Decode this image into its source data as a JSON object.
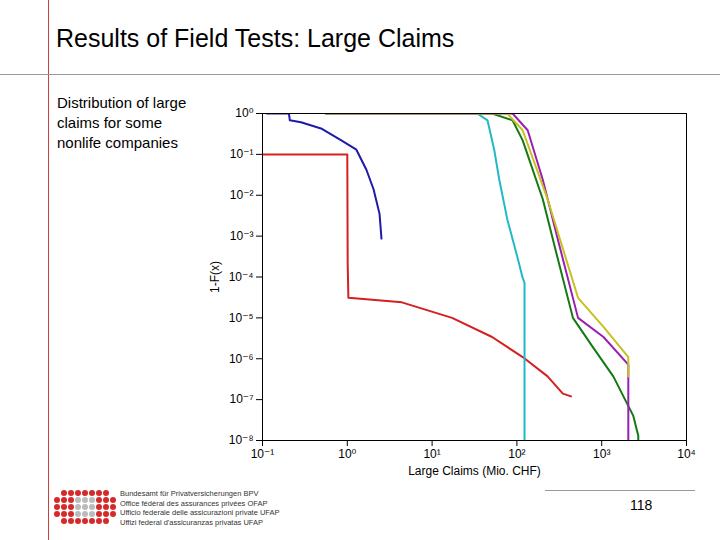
{
  "slide": {
    "title": "Results of Field Tests: Large Claims",
    "caption": "Distribution of large claims for some nonlife companies",
    "footer": [
      "Bundesamt für Privatversicherungen BPV",
      "Office fédéral des assurances privées OFAP",
      "Ufficio federale delle assicurazioni private UFAP",
      "Uffizi federal d'assicuranzas privatas UFAP"
    ],
    "page": "118"
  },
  "chart_data": {
    "type": "line",
    "log": true,
    "grid": false,
    "x_label": "Large Claims (Mio. CHF)",
    "y_label": "1-F(x)",
    "xlim": [
      0.1,
      10000
    ],
    "ylim": [
      1e-08,
      1
    ],
    "xticks": [
      {
        "value": 0.1,
        "label": "10⁻¹"
      },
      {
        "value": 1,
        "label": "10⁰"
      },
      {
        "value": 10,
        "label": "10¹"
      },
      {
        "value": 100,
        "label": "10²"
      },
      {
        "value": 1000,
        "label": "10³"
      },
      {
        "value": 10000,
        "label": "10⁴"
      }
    ],
    "yticks": [
      {
        "value": 1,
        "label": "10⁰"
      },
      {
        "value": 0.1,
        "label": "10⁻¹"
      },
      {
        "value": 0.01,
        "label": "10⁻²"
      },
      {
        "value": 0.001,
        "label": "10⁻³"
      },
      {
        "value": 0.0001,
        "label": "10⁻⁴"
      },
      {
        "value": 1e-05,
        "label": "10⁻⁵"
      },
      {
        "value": 1e-06,
        "label": "10⁻⁶"
      },
      {
        "value": 1e-07,
        "label": "10⁻⁷"
      },
      {
        "value": 1e-08,
        "label": "10⁻⁸"
      }
    ],
    "series": [
      {
        "color": "#1c1ca8",
        "x": [
          0.112,
          0.205,
          0.21,
          0.284,
          0.49,
          0.85,
          1.28,
          1.68,
          2.04,
          2.4,
          2.53
        ],
        "values": [
          1,
          1,
          0.68,
          0.61,
          0.43,
          0.22,
          0.13,
          0.042,
          0.014,
          0.0035,
          0.00087
        ]
      },
      {
        "color": "#d42020",
        "x": [
          0.1,
          1,
          1.01,
          1.03,
          4.4,
          17.2,
          51,
          117,
          230,
          348,
          434
        ],
        "values": [
          0.1,
          0.1,
          0.00022,
          3.1e-05,
          2.4e-05,
          1e-05,
          3.4e-06,
          1.1e-06,
          3.7e-07,
          1.4e-07,
          1.2e-07
        ]
      },
      {
        "color": "#137a13",
        "x": [
          0.56,
          51,
          89,
          117,
          202,
          302,
          458,
          790,
          1370,
          2360,
          2700,
          2700
        ],
        "values": [
          1,
          1,
          0.68,
          0.22,
          0.008,
          0.00029,
          1e-05,
          1.9e-06,
          3.7e-07,
          4e-08,
          1.3e-08,
          1e-08
        ]
      },
      {
        "color": "#22b8c8",
        "x": [
          0.56,
          34,
          45,
          54,
          62,
          77,
          102,
          117,
          123,
          123
        ],
        "values": [
          1,
          1,
          0.68,
          0.13,
          0.024,
          0.0026,
          0.00029,
          9.5e-05,
          7.2e-05,
          1e-08
        ]
      },
      {
        "color": "#9a1fb0",
        "x": [
          0.56,
          89,
          134,
          202,
          302,
          526,
          1050,
          2060,
          2060
        ],
        "values": [
          1,
          1,
          0.39,
          0.024,
          0.00087,
          1e-05,
          3.4e-06,
          7.2e-07,
          1e-08
        ]
      },
      {
        "color": "#c8c020",
        "x": [
          0.56,
          77,
          117,
          230,
          348,
          526,
          1050,
          2060,
          2060
        ],
        "values": [
          1,
          1,
          0.39,
          0.008,
          0.0005,
          3.1e-05,
          6e-06,
          1.1e-06,
          3.7e-07
        ]
      }
    ]
  }
}
